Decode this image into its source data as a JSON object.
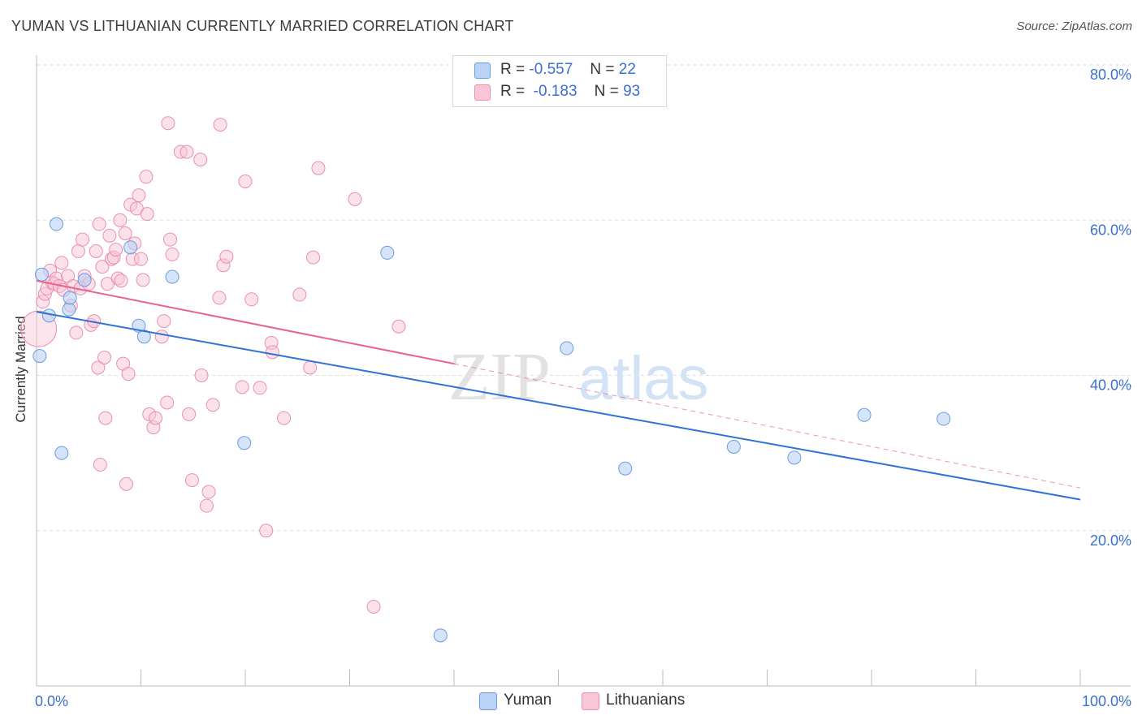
{
  "title": "YUMAN VS LITHUANIAN CURRENTLY MARRIED CORRELATION CHART",
  "source": "Source: ZipAtlas.com",
  "watermark": {
    "zip": "ZIP",
    "atlas": "atlas"
  },
  "legend": {
    "yuman": {
      "r_label": "R =",
      "r_value": "-0.557",
      "n_label": "N =",
      "n_value": "22"
    },
    "lithuanians": {
      "r_label": "R =",
      "r_value": "-0.183",
      "n_label": "N =",
      "n_value": "93"
    }
  },
  "chart_data": {
    "type": "scatter",
    "title": "YUMAN VS LITHUANIAN CURRENTLY MARRIED CORRELATION CHART",
    "xlabel": "",
    "ylabel": "Currently Married",
    "xlim": [
      0,
      100
    ],
    "ylim": [
      0,
      80
    ],
    "x_tick_labels": [
      "0.0%",
      "100.0%"
    ],
    "y_ticks": [
      20,
      40,
      60,
      80
    ],
    "y_tick_labels": [
      "20.0%",
      "40.0%",
      "60.0%",
      "80.0%"
    ],
    "grid": true,
    "legend_position": "bottom-center",
    "colors": {
      "yuman_fill": "#b9d2f5",
      "yuman_stroke": "#6b9be0",
      "yuman_line": "#2f72d6",
      "lith_fill": "#f8c6d6",
      "lith_stroke": "#ea8fae",
      "lith_line": "#e8648f",
      "grid": "#dedede",
      "tick_label": "#3a6fd0"
    },
    "series": [
      {
        "name": "Yuman",
        "trend": {
          "x": [
            0,
            100
          ],
          "y": [
            48.2,
            24.0
          ]
        },
        "points": [
          {
            "x": 0.3,
            "y": 42.5
          },
          {
            "x": 0.5,
            "y": 53.0
          },
          {
            "x": 1.2,
            "y": 47.7
          },
          {
            "x": 1.9,
            "y": 59.5
          },
          {
            "x": 2.4,
            "y": 30.0
          },
          {
            "x": 3.1,
            "y": 48.5
          },
          {
            "x": 3.2,
            "y": 50.0
          },
          {
            "x": 4.6,
            "y": 52.3
          },
          {
            "x": 9.0,
            "y": 56.5
          },
          {
            "x": 9.8,
            "y": 46.4
          },
          {
            "x": 10.3,
            "y": 45.0
          },
          {
            "x": 13.0,
            "y": 52.7
          },
          {
            "x": 19.9,
            "y": 31.3
          },
          {
            "x": 33.6,
            "y": 55.8
          },
          {
            "x": 38.7,
            "y": 6.5
          },
          {
            "x": 50.8,
            "y": 43.5
          },
          {
            "x": 56.4,
            "y": 28.0
          },
          {
            "x": 66.8,
            "y": 30.8
          },
          {
            "x": 72.6,
            "y": 29.4
          },
          {
            "x": 79.3,
            "y": 34.9
          },
          {
            "x": 86.9,
            "y": 34.4
          }
        ]
      },
      {
        "name": "Lithuanians",
        "trend": {
          "x": [
            0,
            40
          ],
          "y": [
            52.2,
            41.5
          ]
        },
        "trend_extension": {
          "x": [
            40,
            100
          ],
          "y": [
            41.5,
            25.5
          ]
        },
        "points": [
          {
            "x": 0.2,
            "y": 46.0,
            "big": true
          },
          {
            "x": 0.6,
            "y": 49.5
          },
          {
            "x": 0.8,
            "y": 50.5
          },
          {
            "x": 1.0,
            "y": 51.2
          },
          {
            "x": 1.3,
            "y": 53.5
          },
          {
            "x": 1.5,
            "y": 52.0
          },
          {
            "x": 1.7,
            "y": 51.8
          },
          {
            "x": 1.9,
            "y": 52.5
          },
          {
            "x": 2.2,
            "y": 51.5
          },
          {
            "x": 2.4,
            "y": 54.5
          },
          {
            "x": 2.6,
            "y": 51.0
          },
          {
            "x": 3.0,
            "y": 52.8
          },
          {
            "x": 3.3,
            "y": 49.0
          },
          {
            "x": 3.5,
            "y": 51.5
          },
          {
            "x": 3.8,
            "y": 45.5
          },
          {
            "x": 4.0,
            "y": 56.0
          },
          {
            "x": 4.2,
            "y": 51.2
          },
          {
            "x": 4.4,
            "y": 57.5
          },
          {
            "x": 4.6,
            "y": 52.8
          },
          {
            "x": 5.0,
            "y": 51.8
          },
          {
            "x": 5.2,
            "y": 46.5
          },
          {
            "x": 5.5,
            "y": 47.0
          },
          {
            "x": 5.7,
            "y": 56.0
          },
          {
            "x": 5.9,
            "y": 41.0
          },
          {
            "x": 6.0,
            "y": 59.5
          },
          {
            "x": 6.1,
            "y": 28.5
          },
          {
            "x": 6.3,
            "y": 54.0
          },
          {
            "x": 6.5,
            "y": 42.3
          },
          {
            "x": 6.6,
            "y": 34.5
          },
          {
            "x": 6.8,
            "y": 51.8
          },
          {
            "x": 7.0,
            "y": 58.0
          },
          {
            "x": 7.2,
            "y": 55.0
          },
          {
            "x": 7.4,
            "y": 55.2
          },
          {
            "x": 7.6,
            "y": 56.2
          },
          {
            "x": 7.8,
            "y": 52.5
          },
          {
            "x": 8.0,
            "y": 60.0
          },
          {
            "x": 8.1,
            "y": 52.2
          },
          {
            "x": 8.3,
            "y": 41.5
          },
          {
            "x": 8.5,
            "y": 58.3
          },
          {
            "x": 8.6,
            "y": 26.0
          },
          {
            "x": 8.8,
            "y": 40.2
          },
          {
            "x": 9.0,
            "y": 62.0
          },
          {
            "x": 9.2,
            "y": 55.0
          },
          {
            "x": 9.4,
            "y": 57.0
          },
          {
            "x": 9.6,
            "y": 61.5
          },
          {
            "x": 9.8,
            "y": 63.2
          },
          {
            "x": 10.0,
            "y": 55.0
          },
          {
            "x": 10.2,
            "y": 52.3
          },
          {
            "x": 10.5,
            "y": 65.6
          },
          {
            "x": 10.6,
            "y": 60.8
          },
          {
            "x": 10.8,
            "y": 35.0
          },
          {
            "x": 11.2,
            "y": 33.3
          },
          {
            "x": 11.4,
            "y": 34.5
          },
          {
            "x": 12.0,
            "y": 45.0
          },
          {
            "x": 12.2,
            "y": 47.0
          },
          {
            "x": 12.5,
            "y": 36.5
          },
          {
            "x": 12.6,
            "y": 72.5
          },
          {
            "x": 12.8,
            "y": 57.5
          },
          {
            "x": 13.0,
            "y": 55.6
          },
          {
            "x": 13.8,
            "y": 68.8
          },
          {
            "x": 14.4,
            "y": 68.8
          },
          {
            "x": 14.6,
            "y": 35.0
          },
          {
            "x": 14.9,
            "y": 26.5
          },
          {
            "x": 15.7,
            "y": 67.8
          },
          {
            "x": 15.8,
            "y": 40.0
          },
          {
            "x": 16.3,
            "y": 23.2
          },
          {
            "x": 16.5,
            "y": 25.0
          },
          {
            "x": 16.9,
            "y": 36.2
          },
          {
            "x": 17.5,
            "y": 50.0
          },
          {
            "x": 17.6,
            "y": 72.3
          },
          {
            "x": 17.9,
            "y": 54.2
          },
          {
            "x": 18.2,
            "y": 55.3
          },
          {
            "x": 19.7,
            "y": 38.5
          },
          {
            "x": 20.0,
            "y": 65.0
          },
          {
            "x": 20.6,
            "y": 49.8
          },
          {
            "x": 21.4,
            "y": 38.4
          },
          {
            "x": 22.0,
            "y": 20.0
          },
          {
            "x": 22.5,
            "y": 44.2
          },
          {
            "x": 22.6,
            "y": 43.0
          },
          {
            "x": 23.7,
            "y": 34.5
          },
          {
            "x": 25.2,
            "y": 50.4
          },
          {
            "x": 26.2,
            "y": 41.0
          },
          {
            "x": 26.5,
            "y": 55.2
          },
          {
            "x": 27.0,
            "y": 66.7
          },
          {
            "x": 30.5,
            "y": 62.7
          },
          {
            "x": 32.3,
            "y": 10.2
          },
          {
            "x": 34.7,
            "y": 46.3
          }
        ]
      }
    ]
  }
}
